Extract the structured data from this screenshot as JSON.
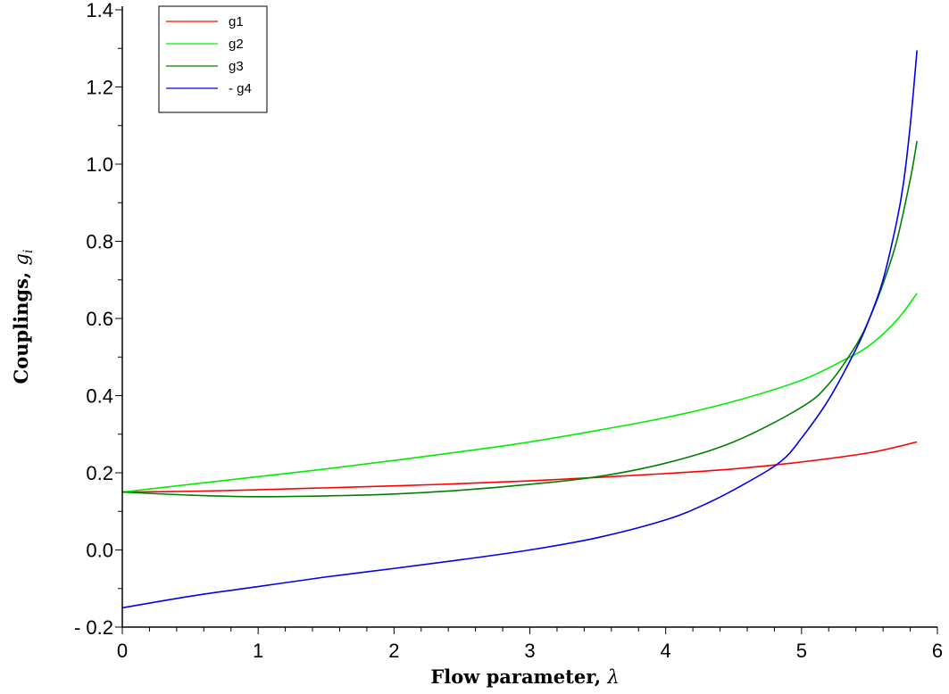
{
  "chart_data": {
    "type": "line",
    "xlabel": "Flow parameter,",
    "xlabel_symbol": "λ",
    "ylabel": "Couplings,",
    "ylabel_symbol": "g",
    "ylabel_subscript": "i",
    "xlim": [
      0,
      6
    ],
    "ylim": [
      -0.2,
      1.4
    ],
    "xticks": [
      0,
      1,
      2,
      3,
      4,
      5,
      6
    ],
    "xtick_labels": [
      "0",
      "1",
      "2",
      "3",
      "4",
      "5",
      "6"
    ],
    "yticks": [
      -0.2,
      0.0,
      0.2,
      0.4,
      0.6,
      0.8,
      1.0,
      1.2,
      1.4
    ],
    "ytick_labels": [
      "- 0.2",
      "0.0",
      "0.2",
      "0.4",
      "0.6",
      "0.8",
      "1.0",
      "1.2",
      "1.4"
    ],
    "grid": false,
    "legend_position": "top-left",
    "series": [
      {
        "name": "g1",
        "color": "#ff0000",
        "x": [
          0,
          0.5,
          1,
          1.5,
          2,
          2.5,
          3,
          3.5,
          4,
          4.5,
          5,
          5.5,
          5.85
        ],
        "y": [
          0.15,
          0.152,
          0.156,
          0.161,
          0.166,
          0.172,
          0.179,
          0.188,
          0.198,
          0.21,
          0.228,
          0.252,
          0.28
        ]
      },
      {
        "name": "g2",
        "color": "#00ee00",
        "x": [
          0,
          0.5,
          1,
          1.5,
          2,
          2.5,
          3,
          3.5,
          4,
          4.5,
          5,
          5.3,
          5.5,
          5.7,
          5.85
        ],
        "y": [
          0.15,
          0.17,
          0.19,
          0.21,
          0.232,
          0.255,
          0.28,
          0.31,
          0.343,
          0.385,
          0.44,
          0.49,
          0.53,
          0.595,
          0.665
        ]
      },
      {
        "name": "g3",
        "color": "#008000",
        "x": [
          0,
          0.5,
          1,
          1.5,
          2,
          2.5,
          3,
          3.5,
          4,
          4.5,
          5,
          5.2,
          5.4,
          5.5,
          5.6,
          5.7,
          5.8,
          5.85
        ],
        "y": [
          0.15,
          0.142,
          0.138,
          0.14,
          0.145,
          0.155,
          0.17,
          0.19,
          0.225,
          0.28,
          0.37,
          0.43,
          0.53,
          0.6,
          0.69,
          0.8,
          0.96,
          1.06
        ]
      },
      {
        "name": "- g4",
        "color": "#0000ee",
        "x": [
          0,
          0.5,
          1,
          1.5,
          2,
          2.5,
          3,
          3.5,
          4,
          4.3,
          4.6,
          4.85,
          5,
          5.2,
          5.4,
          5.5,
          5.6,
          5.7,
          5.75,
          5.8,
          5.85
        ],
        "y": [
          -0.15,
          -0.12,
          -0.095,
          -0.07,
          -0.048,
          -0.025,
          0.0,
          0.032,
          0.078,
          0.12,
          0.175,
          0.23,
          0.29,
          0.39,
          0.52,
          0.6,
          0.7,
          0.85,
          0.95,
          1.1,
          1.295
        ]
      }
    ]
  }
}
